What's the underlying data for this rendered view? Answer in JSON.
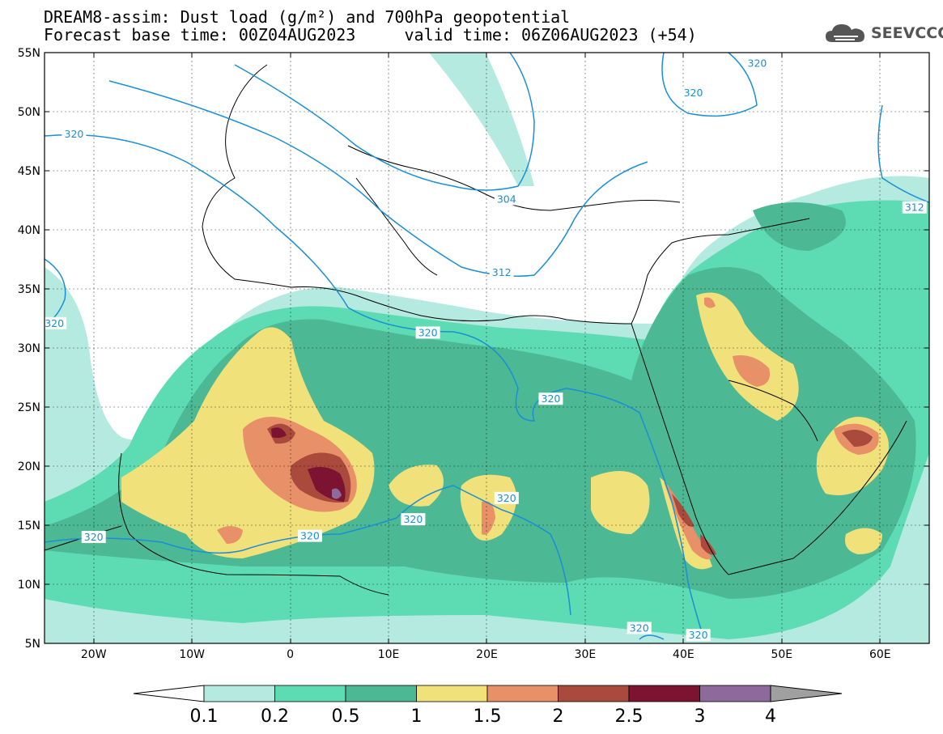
{
  "title": {
    "line1": "DREAM8-assim: Dust load (g/m²) and 700hPa geopotential",
    "line2": "Forecast base time: 00Z04AUG2023     valid time: 06Z06AUG2023 (+54)"
  },
  "logo": {
    "text": "SEEVCCC",
    "icon": "cloud-logo-icon"
  },
  "map": {
    "lon_range": [
      -25,
      65
    ],
    "lat_range": [
      5,
      55
    ],
    "lat_ticks": [
      "5N",
      "10N",
      "15N",
      "20N",
      "25N",
      "30N",
      "35N",
      "40N",
      "45N",
      "50N",
      "55N"
    ],
    "lon_ticks": [
      "20W",
      "10W",
      "0",
      "10E",
      "20E",
      "30E",
      "40E",
      "50E",
      "60E"
    ],
    "contour_color": "#1a8fd6",
    "contour_labels": [
      {
        "text": "320",
        "lon": -22,
        "lat": 48
      },
      {
        "text": "320",
        "lon": 41,
        "lat": 51.5
      },
      {
        "text": "320",
        "lon": 47.5,
        "lat": 54
      },
      {
        "text": "304",
        "lon": 22,
        "lat": 42.5
      },
      {
        "text": "312",
        "lon": 21.5,
        "lat": 36.3
      },
      {
        "text": "312",
        "lon": 63.5,
        "lat": 41.8
      },
      {
        "text": "320",
        "lon": -24,
        "lat": 32
      },
      {
        "text": "320",
        "lon": 14,
        "lat": 31.2
      },
      {
        "text": "320",
        "lon": 26.5,
        "lat": 25.6
      },
      {
        "text": "320",
        "lon": 22,
        "lat": 17.2
      },
      {
        "text": "320",
        "lon": 12.5,
        "lat": 15.4
      },
      {
        "text": "320",
        "lon": 2,
        "lat": 14
      },
      {
        "text": "320",
        "lon": -20,
        "lat": 13.9
      },
      {
        "text": "320",
        "lon": 35.5,
        "lat": 6.2
      },
      {
        "text": "320",
        "lon": 41.5,
        "lat": 5.6
      }
    ]
  },
  "colorbar": {
    "colors": [
      "#b4eadf",
      "#5ddcb4",
      "#4cb894",
      "#f1e17a",
      "#e89068",
      "#a94a3c",
      "#7c1330",
      "#8e6a9c"
    ],
    "left_triangle_color": "#ffffff",
    "right_triangle_color": "#a0a0a0",
    "labels": [
      "0.1",
      "0.2",
      "0.5",
      "1",
      "1.5",
      "2",
      "2.5",
      "3",
      "4"
    ]
  }
}
